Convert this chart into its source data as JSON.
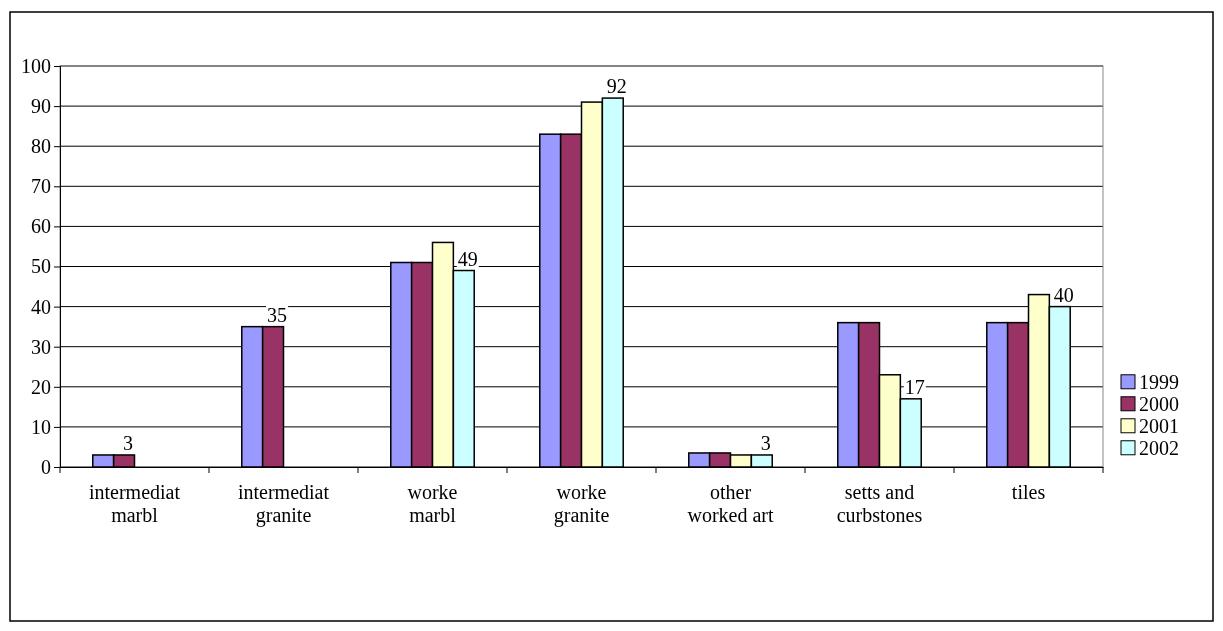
{
  "chart_data": {
    "type": "bar",
    "categories": [
      "intermediat marbl",
      "intermediat granite",
      "worke marbl",
      "worke granite",
      "other worked art",
      "setts and curbstones",
      "tiles"
    ],
    "series": [
      {
        "name": "1999",
        "color": "#9999ff",
        "values": [
          3,
          35,
          51,
          83,
          3.5,
          36,
          36
        ]
      },
      {
        "name": "2000",
        "color": "#993366",
        "values": [
          3,
          35,
          51,
          83,
          3.5,
          36,
          36
        ],
        "value_labels": [
          "3",
          "35",
          null,
          null,
          null,
          null,
          null
        ]
      },
      {
        "name": "2001",
        "color": "#ffffcc",
        "values": [
          null,
          null,
          56,
          91,
          3,
          23,
          43
        ]
      },
      {
        "name": "2002",
        "color": "#ccffff",
        "values": [
          null,
          null,
          49,
          92,
          3,
          17,
          40
        ],
        "value_labels": [
          null,
          null,
          "49",
          "92",
          "3",
          "17",
          "40"
        ]
      }
    ],
    "ylim": [
      0,
      100
    ],
    "yticks": [
      0,
      10,
      20,
      30,
      40,
      50,
      60,
      70,
      80,
      90,
      100
    ],
    "grid": "y",
    "legend": "right"
  }
}
